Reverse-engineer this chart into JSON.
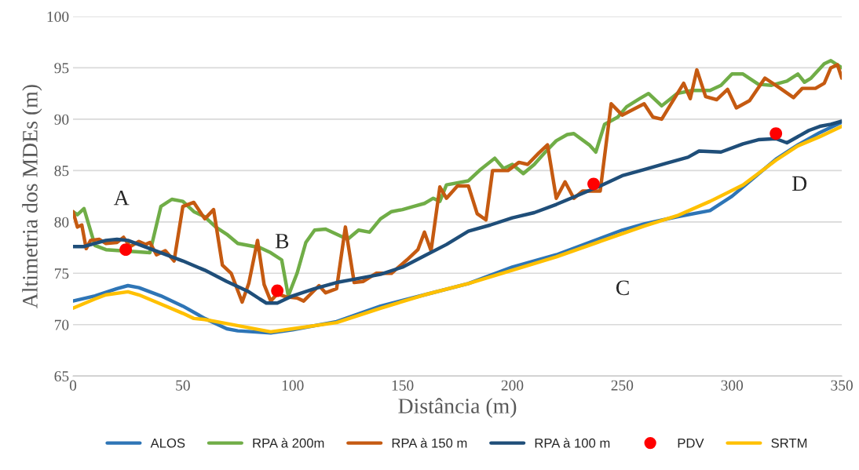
{
  "chart_data": {
    "type": "line",
    "xlabel": "Distância (m)",
    "ylabel": "Altimetria dos MDEs (m)",
    "xlim": [
      0,
      350
    ],
    "xticks": [
      0,
      50,
      100,
      150,
      200,
      250,
      300,
      350
    ],
    "ylim": [
      65,
      100
    ],
    "yticks": [
      65,
      70,
      75,
      80,
      85,
      90,
      95,
      100
    ],
    "grid": "y",
    "legend": "bottom",
    "line_style": "solid",
    "series": [
      {
        "name": "ALOS",
        "color": "#2e75b6",
        "x": [
          0,
          10,
          20,
          25,
          30,
          40,
          50,
          60,
          70,
          75,
          90,
          100,
          120,
          140,
          160,
          180,
          200,
          220,
          240,
          250,
          260,
          275,
          290,
          300,
          310,
          320,
          330,
          340,
          350
        ],
        "values": [
          72.3,
          72.8,
          73.5,
          73.8,
          73.6,
          72.8,
          71.8,
          70.6,
          69.6,
          69.4,
          69.2,
          69.5,
          70.3,
          71.8,
          72.9,
          74.0,
          75.6,
          76.8,
          78.4,
          79.2,
          79.8,
          80.5,
          81.1,
          82.5,
          84.3,
          86.1,
          87.5,
          88.7,
          89.7
        ]
      },
      {
        "name": "RPA à 200m",
        "color": "#70ad47",
        "x": [
          0,
          2,
          5,
          10,
          15,
          35,
          40,
          45,
          50,
          55,
          60,
          65,
          70,
          75,
          85,
          90,
          95,
          98,
          102,
          106,
          110,
          115,
          120,
          125,
          130,
          135,
          140,
          145,
          150,
          155,
          160,
          164,
          167,
          170,
          180,
          185,
          192,
          196,
          200,
          205,
          210,
          215,
          220,
          225,
          228,
          235,
          238,
          242,
          248,
          252,
          258,
          262,
          268,
          275,
          282,
          290,
          295,
          300,
          305,
          312,
          318,
          325,
          330,
          333,
          336,
          342,
          345,
          350
        ],
        "values": [
          81.0,
          80.7,
          81.3,
          77.7,
          77.3,
          77.0,
          81.5,
          82.2,
          82.0,
          81.0,
          80.5,
          79.5,
          78.8,
          77.9,
          77.5,
          77.0,
          76.3,
          72.8,
          75.0,
          78.0,
          79.2,
          79.3,
          78.8,
          78.3,
          79.2,
          79.0,
          80.3,
          81.0,
          81.2,
          81.5,
          81.8,
          82.3,
          82.0,
          83.6,
          84.0,
          85.0,
          86.2,
          85.2,
          85.6,
          84.7,
          85.6,
          86.8,
          87.9,
          88.5,
          88.6,
          87.5,
          86.8,
          89.5,
          90.2,
          91.2,
          92.0,
          92.5,
          91.3,
          92.5,
          92.8,
          92.8,
          93.3,
          94.4,
          94.4,
          93.4,
          93.3,
          93.7,
          94.4,
          93.6,
          94.0,
          95.4,
          95.7,
          95.0
        ]
      },
      {
        "name": "RPA à 150 m",
        "color": "#c55a11",
        "x": [
          0,
          2,
          4,
          6,
          8,
          12,
          15,
          20,
          23,
          26,
          30,
          33,
          35,
          38,
          42,
          46,
          50,
          55,
          60,
          64,
          68,
          72,
          77,
          80,
          84,
          87,
          90,
          93,
          97,
          102,
          105,
          112,
          115,
          120,
          124,
          128,
          132,
          138,
          145,
          152,
          157,
          160,
          163,
          167,
          170,
          175,
          180,
          184,
          188,
          191,
          195,
          198,
          203,
          207,
          212,
          216,
          220,
          224,
          228,
          232,
          240,
          245,
          250,
          260,
          264,
          268,
          278,
          281,
          284,
          288,
          293,
          298,
          302,
          308,
          315,
          322,
          328,
          332,
          338,
          342,
          345,
          348,
          350
        ],
        "values": [
          81.0,
          79.5,
          79.7,
          77.4,
          78.2,
          78.3,
          77.9,
          78.0,
          78.5,
          77.6,
          78.1,
          77.8,
          78.0,
          76.8,
          77.2,
          76.2,
          81.5,
          81.9,
          80.3,
          81.2,
          75.8,
          75.0,
          72.2,
          74.0,
          78.2,
          73.9,
          72.3,
          73.0,
          72.7,
          72.6,
          72.3,
          73.8,
          73.1,
          73.5,
          79.5,
          74.1,
          74.2,
          75.0,
          75.0,
          76.3,
          77.3,
          79.0,
          77.2,
          83.4,
          82.3,
          83.5,
          83.5,
          80.8,
          80.2,
          85.0,
          85.0,
          85.0,
          85.8,
          85.6,
          86.7,
          87.5,
          82.3,
          83.9,
          82.3,
          83.0,
          83.0,
          91.5,
          90.4,
          91.5,
          90.2,
          90.0,
          93.5,
          92.0,
          94.8,
          92.2,
          91.9,
          92.9,
          91.1,
          91.8,
          94.0,
          93.0,
          92.1,
          93.0,
          93.0,
          93.5,
          95.0,
          95.3,
          94.0
        ]
      },
      {
        "name": "RPA à 100 m",
        "color": "#1f4e79",
        "x": [
          0,
          5,
          15,
          20,
          25,
          30,
          40,
          50,
          60,
          70,
          80,
          85,
          88,
          93,
          100,
          110,
          120,
          130,
          140,
          150,
          160,
          170,
          180,
          190,
          200,
          210,
          220,
          230,
          240,
          250,
          260,
          270,
          280,
          285,
          295,
          305,
          312,
          320,
          325,
          335,
          340,
          345,
          350
        ],
        "values": [
          77.6,
          77.6,
          78.2,
          78.3,
          78.2,
          77.8,
          77.0,
          76.2,
          75.3,
          74.2,
          73.2,
          72.5,
          72.1,
          72.1,
          72.8,
          73.5,
          74.1,
          74.5,
          74.9,
          75.6,
          76.7,
          77.8,
          79.1,
          79.7,
          80.4,
          80.9,
          81.7,
          82.6,
          83.5,
          84.5,
          85.1,
          85.7,
          86.3,
          86.9,
          86.8,
          87.6,
          88.0,
          88.1,
          87.7,
          88.9,
          89.3,
          89.5,
          89.8
        ]
      },
      {
        "name": "PDV",
        "color": "#ff0000",
        "type": "scatter",
        "marker": "circle",
        "x": [
          24,
          93,
          237,
          320
        ],
        "values": [
          77.3,
          73.3,
          83.7,
          88.6
        ]
      },
      {
        "name": "SRTM",
        "color": "#ffc000",
        "x": [
          0,
          10,
          15,
          25,
          30,
          40,
          50,
          55,
          60,
          70,
          80,
          90,
          100,
          120,
          140,
          160,
          180,
          200,
          220,
          240,
          260,
          275,
          290,
          305,
          320,
          330,
          340,
          350
        ],
        "values": [
          71.6,
          72.5,
          72.9,
          73.2,
          72.9,
          72.0,
          71.1,
          70.6,
          70.5,
          70.1,
          69.7,
          69.3,
          69.6,
          70.2,
          71.6,
          72.9,
          74.0,
          75.3,
          76.6,
          78.1,
          79.6,
          80.6,
          82.0,
          83.6,
          86.0,
          87.4,
          88.3,
          89.3
        ]
      }
    ],
    "annotations": [
      "A",
      "B",
      "C",
      "D"
    ]
  }
}
